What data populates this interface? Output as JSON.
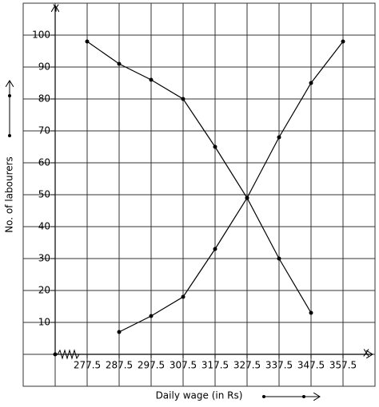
{
  "chart_data": {
    "type": "line",
    "x_axis_letter": "X",
    "y_axis_letter": "Y",
    "x_label": "Daily wage (in Rs)",
    "y_label": "No. of labourers",
    "xlim": [
      257.5,
      367.5
    ],
    "ylim": [
      -10,
      110
    ],
    "xticks": [
      277.5,
      287.5,
      297.5,
      307.5,
      317.5,
      327.5,
      337.5,
      347.5,
      357.5
    ],
    "yticks": [
      10,
      20,
      30,
      40,
      50,
      60,
      70,
      80,
      90,
      100
    ],
    "grid": true,
    "series": [
      {
        "color": "#000000",
        "x": [
          287.5,
          297.5,
          307.5,
          317.5,
          327.5,
          337.5,
          347.5,
          357.5
        ],
        "values": [
          7,
          12,
          18,
          33,
          49,
          68,
          85,
          98
        ]
      },
      {
        "color": "#000000",
        "x": [
          277.5,
          287.5,
          297.5,
          307.5,
          317.5,
          327.5,
          337.5,
          347.5
        ],
        "values": [
          98,
          91,
          86,
          80,
          65,
          49,
          30,
          13
        ]
      }
    ]
  }
}
